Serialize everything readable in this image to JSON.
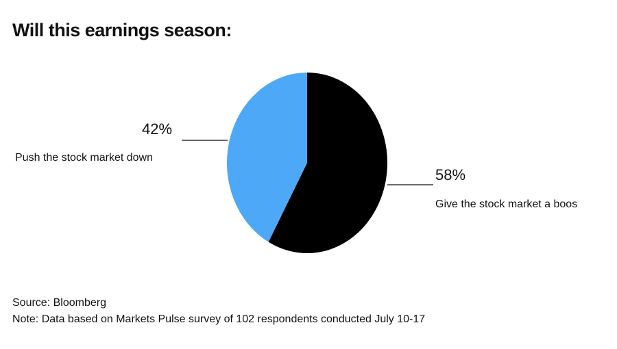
{
  "chart_data": {
    "type": "pie",
    "title": "Will this earnings season:",
    "categories": [
      "Give the stock market a boos",
      "Push the stock market down"
    ],
    "values": [
      58,
      42
    ],
    "value_labels": [
      "58%",
      "42%"
    ],
    "colors": [
      "#000000",
      "#4da9f7"
    ],
    "source": "Source: Bloomberg",
    "note": "Note: Data based on Markets Pulse survey of 102 respondents conducted July 10-17"
  }
}
